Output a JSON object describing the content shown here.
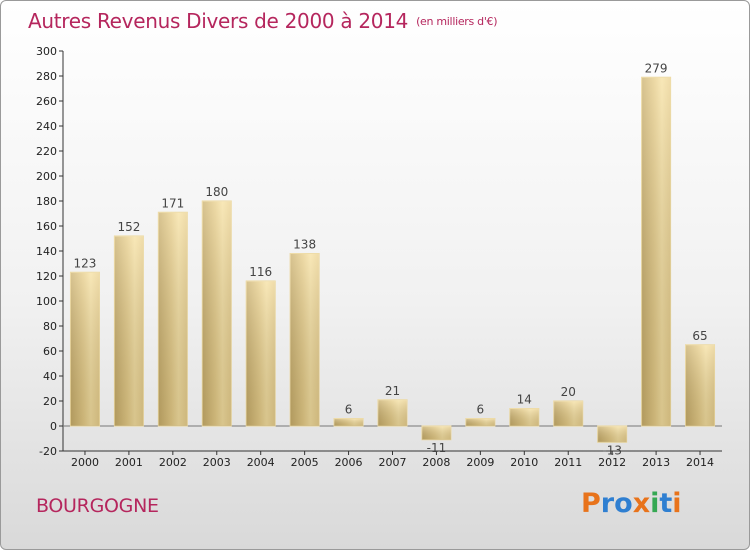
{
  "title": "Autres Revenus Divers de 2000 à 2014",
  "unit": "(en milliers d'€)",
  "region": "BOURGOGNE",
  "logo": {
    "text": "Proxiti",
    "colors": [
      "#e8731b",
      "#2f7fd1",
      "#2f7fd1",
      "#e8731b",
      "#35a853",
      "#2f7fd1",
      "#e8731b"
    ]
  },
  "colors": {
    "title": "#b5265d",
    "bar_light": "#f5dd9a",
    "bar_dark": "#c9ae6a"
  },
  "chart_data": {
    "type": "bar",
    "title": "Autres Revenus Divers de 2000 à 2014",
    "categories": [
      "2000",
      "2001",
      "2002",
      "2003",
      "2004",
      "2005",
      "2006",
      "2007",
      "2008",
      "2009",
      "2010",
      "2011",
      "2012",
      "2013",
      "2014"
    ],
    "values": [
      123,
      152,
      171,
      180,
      116,
      138,
      6,
      21,
      -11,
      6,
      14,
      20,
      -13,
      279,
      65
    ],
    "ylim": [
      -20,
      300
    ],
    "yticks": [
      -20,
      0,
      20,
      40,
      60,
      80,
      100,
      120,
      140,
      160,
      180,
      200,
      220,
      240,
      260,
      280,
      300
    ],
    "grid": false,
    "xlabel": "",
    "ylabel": ""
  }
}
